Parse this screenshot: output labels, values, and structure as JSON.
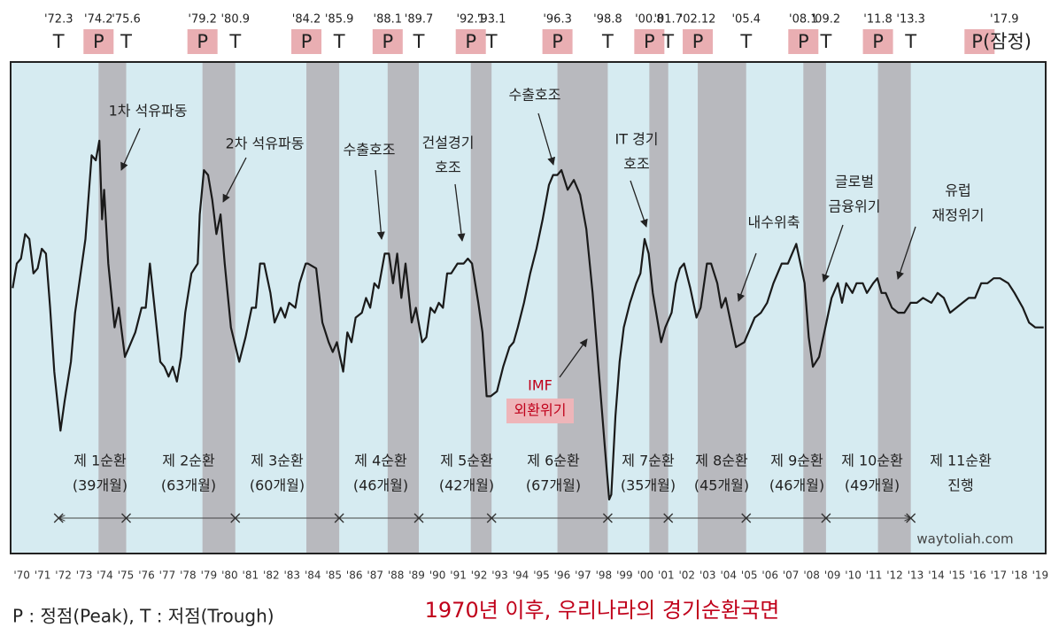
{
  "chart_data": {
    "type": "line",
    "title": "1970년 이후, 우리나라의 경기순환국면",
    "legend_note": "P : 정점(Peak), T : 저점(Trough)",
    "source": "waytoliah.com",
    "color": "#1a1a1a",
    "xlim": [
      1969.9,
      2019.7
    ],
    "ylim": [
      0,
      100
    ],
    "x": [
      1970.0,
      1970.2,
      1970.4,
      1970.6,
      1970.8,
      1971.0,
      1971.2,
      1971.4,
      1971.6,
      1971.8,
      1972.0,
      1972.3,
      1972.5,
      1972.8,
      1973.0,
      1973.2,
      1973.5,
      1973.8,
      1974.0,
      1974.17,
      1974.3,
      1974.4,
      1974.6,
      1974.9,
      1975.1,
      1975.4,
      1975.6,
      1975.9,
      1976.2,
      1976.4,
      1976.6,
      1976.8,
      1977.1,
      1977.3,
      1977.5,
      1977.7,
      1977.9,
      1978.1,
      1978.3,
      1978.6,
      1978.9,
      1979.0,
      1979.2,
      1979.4,
      1979.6,
      1979.8,
      1980.0,
      1980.2,
      1980.5,
      1980.9,
      1981.2,
      1981.5,
      1981.7,
      1981.9,
      1982.1,
      1982.4,
      1982.6,
      1982.9,
      1983.1,
      1983.3,
      1983.6,
      1983.8,
      1984.1,
      1984.2,
      1984.6,
      1984.9,
      1985.2,
      1985.4,
      1985.6,
      1985.9,
      1986.1,
      1986.3,
      1986.5,
      1986.8,
      1987.0,
      1987.2,
      1987.4,
      1987.6,
      1987.9,
      1988.1,
      1988.3,
      1988.5,
      1988.7,
      1988.9,
      1989.2,
      1989.4,
      1989.7,
      1989.9,
      1990.1,
      1990.3,
      1990.5,
      1990.7,
      1990.9,
      1991.1,
      1991.4,
      1991.7,
      1991.9,
      1992.1,
      1992.4,
      1992.6,
      1992.8,
      1993.0,
      1993.3,
      1993.6,
      1993.9,
      1994.1,
      1994.3,
      1994.6,
      1994.9,
      1995.2,
      1995.5,
      1995.8,
      1996.0,
      1996.2,
      1996.4,
      1996.7,
      1997.0,
      1997.3,
      1997.6,
      1997.9,
      1998.2,
      1998.5,
      1998.7,
      1998.8,
      1999.0,
      1999.2,
      1999.4,
      1999.7,
      2000.0,
      2000.2,
      2000.4,
      2000.6,
      2000.8,
      2001.0,
      2001.2,
      2001.4,
      2001.7,
      2001.9,
      2002.1,
      2002.3,
      2002.6,
      2002.9,
      2003.1,
      2003.4,
      2003.6,
      2003.9,
      2004.1,
      2004.3,
      2004.6,
      2004.8,
      2005.2,
      2005.4,
      2005.7,
      2006.0,
      2006.3,
      2006.6,
      2006.8,
      2007.0,
      2007.3,
      2007.5,
      2007.7,
      2007.9,
      2008.1,
      2008.3,
      2008.5,
      2008.8,
      2009.0,
      2009.2,
      2009.4,
      2009.7,
      2009.9,
      2010.1,
      2010.4,
      2010.6,
      2010.9,
      2011.1,
      2011.4,
      2011.6,
      2011.8,
      2012.0,
      2012.3,
      2012.6,
      2012.9,
      2013.2,
      2013.5,
      2013.8,
      2014.2,
      2014.5,
      2014.8,
      2015.1,
      2015.4,
      2015.7,
      2016.0,
      2016.3,
      2016.6,
      2016.9,
      2017.2,
      2017.5,
      2017.9,
      2018.2,
      2018.6,
      2018.9,
      2019.2,
      2019.6
    ],
    "values": [
      54,
      59,
      60,
      65,
      64,
      57,
      58,
      62,
      61,
      50,
      37,
      25,
      31,
      39,
      49,
      55,
      64,
      81,
      80,
      84,
      68,
      74,
      59,
      46,
      50,
      40,
      42,
      45,
      50,
      50,
      59,
      51,
      39,
      38,
      36,
      38,
      35,
      40,
      49,
      57,
      59,
      69,
      78,
      77,
      72,
      65,
      69,
      59,
      46,
      39,
      44,
      50,
      50,
      59,
      59,
      53,
      47,
      50,
      48,
      51,
      50,
      55,
      59,
      59,
      58,
      47,
      43,
      41,
      43,
      37,
      45,
      43,
      48,
      49,
      52,
      50,
      55,
      54,
      61,
      61,
      55,
      61,
      52,
      59,
      47,
      50,
      43,
      44,
      50,
      49,
      51,
      50,
      57,
      57,
      59,
      59,
      60,
      59,
      51,
      45,
      32,
      32,
      33,
      38,
      42,
      43,
      46,
      51,
      57,
      62,
      68,
      75,
      77,
      77,
      78,
      74,
      76,
      73,
      66,
      53,
      37,
      21,
      11,
      12,
      28,
      39,
      46,
      51,
      55,
      57,
      64,
      61,
      53,
      48,
      43,
      46,
      49,
      55,
      58,
      59,
      54,
      48,
      50,
      59,
      59,
      55,
      50,
      52,
      46,
      42,
      43,
      45,
      48,
      49,
      51,
      55,
      57,
      59,
      59,
      61,
      63,
      59,
      55,
      44,
      38,
      40,
      44,
      48,
      52,
      55,
      51,
      55,
      53,
      55,
      55,
      53,
      55,
      56,
      53,
      53,
      50,
      49,
      49,
      51,
      51,
      52,
      51,
      53,
      52,
      49,
      50,
      51,
      52,
      52,
      55,
      55,
      56,
      56,
      55,
      53,
      50,
      47,
      46,
      46
    ],
    "xticks": [
      {
        "value": 1970,
        "label": "'70"
      },
      {
        "value": 1971,
        "label": "'71"
      },
      {
        "value": 1972,
        "label": "'72"
      },
      {
        "value": 1973,
        "label": "'73"
      },
      {
        "value": 1974,
        "label": "'74"
      },
      {
        "value": 1975,
        "label": "'75"
      },
      {
        "value": 1976,
        "label": "'76"
      },
      {
        "value": 1977,
        "label": "'77"
      },
      {
        "value": 1978,
        "label": "'78"
      },
      {
        "value": 1979,
        "label": "'79"
      },
      {
        "value": 1980,
        "label": "'80"
      },
      {
        "value": 1981,
        "label": "'81"
      },
      {
        "value": 1982,
        "label": "'82"
      },
      {
        "value": 1983,
        "label": "'83"
      },
      {
        "value": 1984,
        "label": "'84"
      },
      {
        "value": 1985,
        "label": "'85"
      },
      {
        "value": 1986,
        "label": "'86"
      },
      {
        "value": 1987,
        "label": "'87"
      },
      {
        "value": 1988,
        "label": "'88"
      },
      {
        "value": 1989,
        "label": "'89"
      },
      {
        "value": 1990,
        "label": "'90"
      },
      {
        "value": 1991,
        "label": "'91"
      },
      {
        "value": 1992,
        "label": "'92"
      },
      {
        "value": 1993,
        "label": "'93"
      },
      {
        "value": 1994,
        "label": "'94"
      },
      {
        "value": 1995,
        "label": "'95"
      },
      {
        "value": 1996,
        "label": "'96"
      },
      {
        "value": 1997,
        "label": "'97"
      },
      {
        "value": 1998,
        "label": "'98"
      },
      {
        "value": 1999,
        "label": "'99"
      },
      {
        "value": 2000,
        "label": "'00"
      },
      {
        "value": 2001,
        "label": "'01"
      },
      {
        "value": 2002,
        "label": "'02"
      },
      {
        "value": 2003,
        "label": "'03"
      },
      {
        "value": 2004,
        "label": "'04"
      },
      {
        "value": 2005,
        "label": "'05"
      },
      {
        "value": 2006,
        "label": "'06"
      },
      {
        "value": 2007,
        "label": "'07"
      },
      {
        "value": 2008,
        "label": "'08"
      },
      {
        "value": 2009,
        "label": "'09"
      },
      {
        "value": 2010,
        "label": "'10"
      },
      {
        "value": 2011,
        "label": "'11"
      },
      {
        "value": 2012,
        "label": "'12"
      },
      {
        "value": 2013,
        "label": "'13"
      },
      {
        "value": 2014,
        "label": "'14"
      },
      {
        "value": 2015,
        "label": "'15"
      },
      {
        "value": 2016,
        "label": "'16"
      },
      {
        "value": 2017,
        "label": "'17"
      },
      {
        "value": 2018,
        "label": "'18"
      },
      {
        "value": 2019,
        "label": "'19"
      }
    ],
    "turning_points": [
      {
        "date": "'72.3",
        "mark": "T",
        "x": 1972.21
      },
      {
        "date": "'74.2",
        "mark": "P",
        "x": 1974.13
      },
      {
        "date": "'75.6",
        "mark": "T",
        "x": 1975.46
      },
      {
        "date": "'79.2",
        "mark": "P",
        "x": 1979.13
      },
      {
        "date": "'80.9",
        "mark": "T",
        "x": 1980.71
      },
      {
        "date": "'84.2",
        "mark": "P",
        "x": 1984.13
      },
      {
        "date": "'85.9",
        "mark": "T",
        "x": 1985.71
      },
      {
        "date": "'88.1",
        "mark": "P",
        "x": 1988.04
      },
      {
        "date": "'89.7",
        "mark": "T",
        "x": 1989.54
      },
      {
        "date": "'92.1",
        "mark": "P",
        "x": 1992.04
      },
      {
        "date": "'93.1",
        "mark": "T",
        "x": 1993.04
      },
      {
        "date": "'96.3",
        "mark": "P",
        "x": 1996.21
      },
      {
        "date": "'98.8",
        "mark": "T",
        "x": 1998.63
      },
      {
        "date": "'00.8",
        "mark": "P",
        "x": 2000.63
      },
      {
        "date": "'01.7",
        "mark": "T",
        "x": 2001.54
      },
      {
        "date": "'02.12",
        "mark": "P",
        "x": 2002.96
      },
      {
        "date": "'05.4",
        "mark": "T",
        "x": 2005.29
      },
      {
        "date": "'08.1",
        "mark": "P",
        "x": 2008.04
      },
      {
        "date": "'09.2",
        "mark": "T",
        "x": 2009.13
      },
      {
        "date": "'11.8",
        "mark": "P",
        "x": 2011.63
      },
      {
        "date": "'13.3",
        "mark": "T",
        "x": 2013.21
      },
      {
        "date": "'17.9",
        "mark": "P(잠정)",
        "x": 2017.71
      }
    ],
    "cycles": [
      {
        "name": "제 1순환",
        "duration": "(39개월)"
      },
      {
        "name": "제 2순환",
        "duration": "(63개월)"
      },
      {
        "name": "제 3순환",
        "duration": "(60개월)"
      },
      {
        "name": "제 4순환",
        "duration": "(46개월)"
      },
      {
        "name": "제 5순환",
        "duration": "(42개월)"
      },
      {
        "name": "제 6순환",
        "duration": "(67개월)"
      },
      {
        "name": "제 7순환",
        "duration": "(35개월)"
      },
      {
        "name": "제 8순환",
        "duration": "(45개월)"
      },
      {
        "name": "제 9순환",
        "duration": "(46개월)"
      },
      {
        "name": "제 10순환",
        "duration": "(49개월)"
      },
      {
        "name": "제 11순환",
        "duration": "진행"
      }
    ],
    "annotations": [
      {
        "lines": [
          "1차 석유파동"
        ]
      },
      {
        "lines": [
          "2차 석유파동"
        ]
      },
      {
        "lines": [
          "수출호조"
        ]
      },
      {
        "lines": [
          "건설경기",
          "호조"
        ]
      },
      {
        "lines": [
          "수출호조"
        ]
      },
      {
        "lines": [
          "IMF",
          "외환위기"
        ]
      },
      {
        "lines": [
          "IT 경기",
          "호조"
        ]
      },
      {
        "lines": [
          "내수위축"
        ]
      },
      {
        "lines": [
          "글로벌",
          "금융위기"
        ]
      },
      {
        "lines": [
          "유럽",
          "재정위기"
        ]
      }
    ]
  }
}
